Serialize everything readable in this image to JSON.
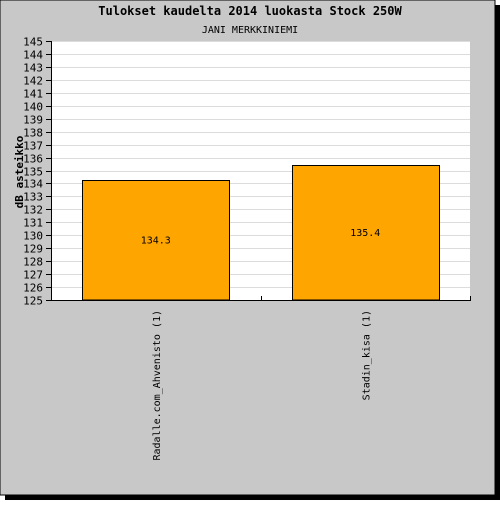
{
  "colors": {
    "background": "#c8c8c8",
    "plot_background": "#ffffff",
    "bar_fill": "#ffa500",
    "bar_stroke": "#000000",
    "grid": "#dcdcdc",
    "text": "#000000",
    "shadow": "#000000"
  },
  "chart_data": {
    "type": "bar",
    "title": "Tulokset kaudelta 2014 luokasta Stock 250W",
    "subtitle": "JANI MERKKINIEMI",
    "ylabel": "dB asteikko",
    "xlabel": "",
    "ylim": [
      125,
      145
    ],
    "ytick_step": 1,
    "grid": true,
    "categories": [
      "Radalle.com_Ahvenisto (1)",
      "Stadin_kisa (1)"
    ],
    "values": [
      134.3,
      135.4
    ],
    "value_labels": [
      "134.3",
      "135.4"
    ]
  }
}
